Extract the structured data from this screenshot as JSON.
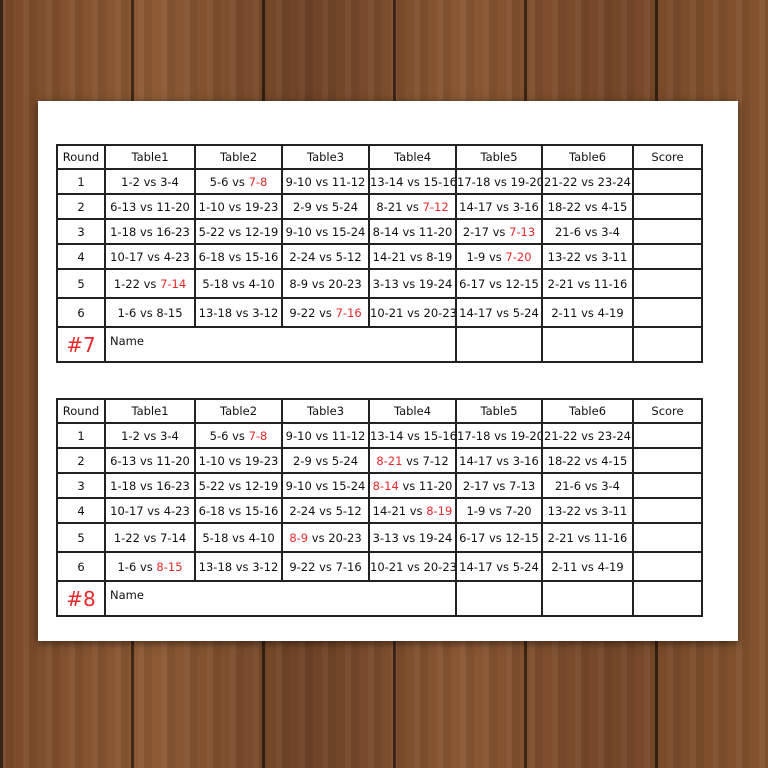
{
  "columns": [
    "Round",
    "Table1",
    "Table2",
    "Table3",
    "Table4",
    "Table5",
    "Table6",
    "Score"
  ],
  "name_label": "Name",
  "vs": "vs",
  "highlight_color": "#e8292b",
  "sheets": [
    {
      "number": "#7",
      "rows": [
        {
          "round": "1",
          "matches": [
            {
              "a": "1-2",
              "b": "3-4",
              "hl": null
            },
            {
              "a": "5-6",
              "b": "7-8",
              "hl": "b"
            },
            {
              "a": "9-10",
              "b": "11-12",
              "hl": null
            },
            {
              "a": "13-14",
              "b": "15-16",
              "hl": null
            },
            {
              "a": "17-18",
              "b": "19-20",
              "hl": null
            },
            {
              "a": "21-22",
              "b": "23-24",
              "hl": null
            }
          ]
        },
        {
          "round": "2",
          "matches": [
            {
              "a": "6-13",
              "b": "11-20",
              "hl": null
            },
            {
              "a": "1-10",
              "b": "19-23",
              "hl": null
            },
            {
              "a": "2-9",
              "b": "5-24",
              "hl": null
            },
            {
              "a": "8-21",
              "b": "7-12",
              "hl": "b"
            },
            {
              "a": "14-17",
              "b": "3-16",
              "hl": null
            },
            {
              "a": "18-22",
              "b": "4-15",
              "hl": null
            }
          ]
        },
        {
          "round": "3",
          "matches": [
            {
              "a": "1-18",
              "b": "16-23",
              "hl": null
            },
            {
              "a": "5-22",
              "b": "12-19",
              "hl": null
            },
            {
              "a": "9-10",
              "b": "15-24",
              "hl": null
            },
            {
              "a": "8-14",
              "b": "11-20",
              "hl": null
            },
            {
              "a": "2-17",
              "b": "7-13",
              "hl": "b"
            },
            {
              "a": "21-6",
              "b": "3-4",
              "hl": null
            }
          ]
        },
        {
          "round": "4",
          "matches": [
            {
              "a": "10-17",
              "b": "4-23",
              "hl": null
            },
            {
              "a": "6-18",
              "b": "15-16",
              "hl": null
            },
            {
              "a": "2-24",
              "b": "5-12",
              "hl": null
            },
            {
              "a": "14-21",
              "b": "8-19",
              "hl": null
            },
            {
              "a": "1-9",
              "b": "7-20",
              "hl": "b"
            },
            {
              "a": "13-22",
              "b": "3-11",
              "hl": null
            }
          ]
        },
        {
          "round": "5",
          "matches": [
            {
              "a": "1-22",
              "b": "7-14",
              "hl": "b"
            },
            {
              "a": "5-18",
              "b": "4-10",
              "hl": null
            },
            {
              "a": "8-9",
              "b": "20-23",
              "hl": null
            },
            {
              "a": "3-13",
              "b": "19-24",
              "hl": null
            },
            {
              "a": "6-17",
              "b": "12-15",
              "hl": null
            },
            {
              "a": "2-21",
              "b": "11-16",
              "hl": null
            }
          ]
        },
        {
          "round": "6",
          "matches": [
            {
              "a": "1-6",
              "b": "8-15",
              "hl": null
            },
            {
              "a": "13-18",
              "b": "3-12",
              "hl": null
            },
            {
              "a": "9-22",
              "b": "7-16",
              "hl": "b"
            },
            {
              "a": "10-21",
              "b": "20-23",
              "hl": null
            },
            {
              "a": "14-17",
              "b": "5-24",
              "hl": null
            },
            {
              "a": "2-11",
              "b": "4-19",
              "hl": null
            }
          ]
        }
      ]
    },
    {
      "number": "#8",
      "rows": [
        {
          "round": "1",
          "matches": [
            {
              "a": "1-2",
              "b": "3-4",
              "hl": null
            },
            {
              "a": "5-6",
              "b": "7-8",
              "hl": "b"
            },
            {
              "a": "9-10",
              "b": "11-12",
              "hl": null
            },
            {
              "a": "13-14",
              "b": "15-16",
              "hl": null
            },
            {
              "a": "17-18",
              "b": "19-20",
              "hl": null
            },
            {
              "a": "21-22",
              "b": "23-24",
              "hl": null
            }
          ]
        },
        {
          "round": "2",
          "matches": [
            {
              "a": "6-13",
              "b": "11-20",
              "hl": null
            },
            {
              "a": "1-10",
              "b": "19-23",
              "hl": null
            },
            {
              "a": "2-9",
              "b": "5-24",
              "hl": null
            },
            {
              "a": "8-21",
              "b": "7-12",
              "hl": "a"
            },
            {
              "a": "14-17",
              "b": "3-16",
              "hl": null
            },
            {
              "a": "18-22",
              "b": "4-15",
              "hl": null
            }
          ]
        },
        {
          "round": "3",
          "matches": [
            {
              "a": "1-18",
              "b": "16-23",
              "hl": null
            },
            {
              "a": "5-22",
              "b": "12-19",
              "hl": null
            },
            {
              "a": "9-10",
              "b": "15-24",
              "hl": null
            },
            {
              "a": "8-14",
              "b": "11-20",
              "hl": "a"
            },
            {
              "a": "2-17",
              "b": "7-13",
              "hl": null
            },
            {
              "a": "21-6",
              "b": "3-4",
              "hl": null
            }
          ]
        },
        {
          "round": "4",
          "matches": [
            {
              "a": "10-17",
              "b": "4-23",
              "hl": null
            },
            {
              "a": "6-18",
              "b": "15-16",
              "hl": null
            },
            {
              "a": "2-24",
              "b": "5-12",
              "hl": null
            },
            {
              "a": "14-21",
              "b": "8-19",
              "hl": "b"
            },
            {
              "a": "1-9",
              "b": "7-20",
              "hl": null
            },
            {
              "a": "13-22",
              "b": "3-11",
              "hl": null
            }
          ]
        },
        {
          "round": "5",
          "matches": [
            {
              "a": "1-22",
              "b": "7-14",
              "hl": null
            },
            {
              "a": "5-18",
              "b": "4-10",
              "hl": null
            },
            {
              "a": "8-9",
              "b": "20-23",
              "hl": "a"
            },
            {
              "a": "3-13",
              "b": "19-24",
              "hl": null
            },
            {
              "a": "6-17",
              "b": "12-15",
              "hl": null
            },
            {
              "a": "2-21",
              "b": "11-16",
              "hl": null
            }
          ]
        },
        {
          "round": "6",
          "matches": [
            {
              "a": "1-6",
              "b": "8-15",
              "hl": "b"
            },
            {
              "a": "13-18",
              "b": "3-12",
              "hl": null
            },
            {
              "a": "9-22",
              "b": "7-16",
              "hl": null
            },
            {
              "a": "10-21",
              "b": "20-23",
              "hl": null
            },
            {
              "a": "14-17",
              "b": "5-24",
              "hl": null
            },
            {
              "a": "2-11",
              "b": "4-19",
              "hl": null
            }
          ]
        }
      ]
    }
  ]
}
